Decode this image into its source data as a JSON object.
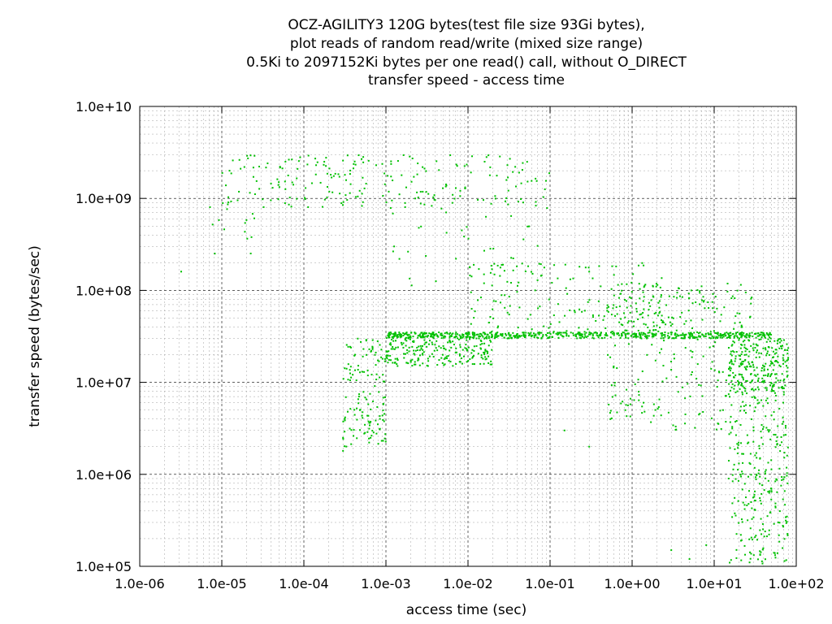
{
  "chart_data": {
    "type": "scatter",
    "title_lines": [
      "OCZ-AGILITY3 120G bytes(test file size 93Gi bytes),",
      "plot reads of random read/write (mixed size range)",
      "0.5Ki to 2097152Ki bytes per one read() call, without O_DIRECT",
      "transfer speed - access time"
    ],
    "xlabel": "access time (sec)",
    "ylabel": "transfer speed (bytes/sec)",
    "x_scale": "log",
    "y_scale": "log",
    "xlim": [
      1e-06,
      100
    ],
    "ylim": [
      100000.0,
      10000000000.0
    ],
    "x_ticks": [
      "1.0e-06",
      "1.0e-05",
      "1.0e-04",
      "1.0e-03",
      "1.0e-02",
      "1.0e-01",
      "1.0e+00",
      "1.0e+01",
      "1.0e+02"
    ],
    "y_ticks": [
      "1.0e+05",
      "1.0e+06",
      "1.0e+07",
      "1.0e+08",
      "1.0e+09",
      "1.0e+10"
    ],
    "grid": true,
    "legend": "none",
    "point_color": "#00c000",
    "series": [
      {
        "clusters": [
          {
            "x_range": [
              1e-05,
              0.1
            ],
            "y_range": [
              800000000.0,
              3000000000.0
            ],
            "count": 220
          },
          {
            "x_range": [
              6e-06,
              3e-05
            ],
            "y_range": [
              250000000.0,
              1000000000.0
            ],
            "count": 14
          },
          {
            "x_range": [
              0.001,
              50
            ],
            "y_range": [
              30000000.0,
              35000000.0
            ],
            "count": 600
          },
          {
            "x_range": [
              0.0003,
              0.001
            ],
            "y_range": [
              2000000.0,
              30000000.0
            ],
            "count": 140
          },
          {
            "x_range": [
              0.001,
              0.02
            ],
            "y_range": [
              15000000.0,
              35000000.0
            ],
            "count": 260
          },
          {
            "x_range": [
              0.01,
              3
            ],
            "y_range": [
              35000000.0,
              200000000.0
            ],
            "count": 160
          },
          {
            "x_range": [
              0.5,
              30
            ],
            "y_range": [
              30000000.0,
              120000000.0
            ],
            "count": 160
          },
          {
            "x_range": [
              0.5,
              20
            ],
            "y_range": [
              3000000.0,
              30000000.0
            ],
            "count": 120
          },
          {
            "x_range": [
              15,
              80
            ],
            "y_range": [
              100000.0,
              20000000.0
            ],
            "count": 320
          },
          {
            "x_range": [
              15,
              80
            ],
            "y_range": [
              8000000.0,
              30000000.0
            ],
            "count": 220
          },
          {
            "x_range": [
              0.001,
              0.1
            ],
            "y_range": [
              100000000.0,
              1000000000.0
            ],
            "count": 40
          }
        ],
        "outliers": [
          {
            "x": 3.2e-06,
            "y": 160000000.0
          },
          {
            "x": 0.0003,
            "y": 1800000.0
          },
          {
            "x": 0.0003,
            "y": 2500000.0
          },
          {
            "x": 3.0,
            "y": 150000.0
          },
          {
            "x": 5.0,
            "y": 120000.0
          },
          {
            "x": 8.0,
            "y": 170000.0
          },
          {
            "x": 15.0,
            "y": 900000.0
          },
          {
            "x": 0.15,
            "y": 3000000.0
          },
          {
            "x": 0.3,
            "y": 2000000.0
          }
        ]
      }
    ]
  }
}
